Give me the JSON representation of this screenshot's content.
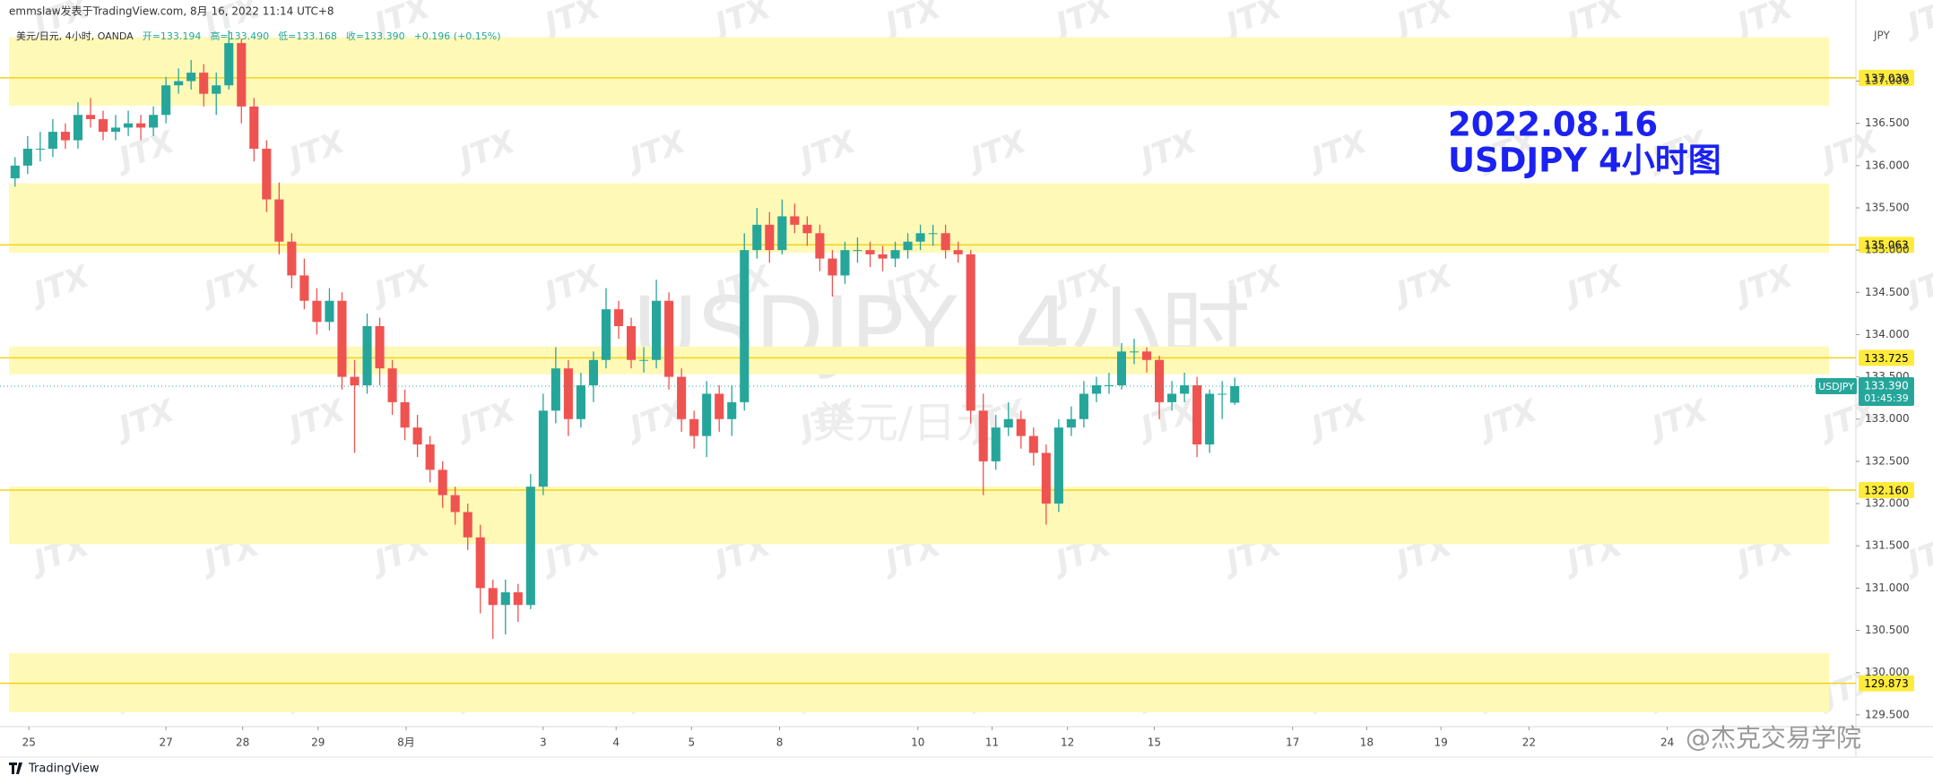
{
  "chart_data": {
    "type": "candlestick",
    "header": "emmslaw发表于TradingView.com, 8月 16, 2022 11:14 UTC+8",
    "legend": [
      "美元/日元, 4小时, OANDA",
      "开=133.194",
      "高=133.490",
      "低=133.168",
      "收=133.390",
      "+0.196 (+0.15%)"
    ],
    "annotation": [
      "2022.08.16",
      "USDJPY 4小时图"
    ],
    "watermark_title": "USDJPY, 4小时",
    "watermark_subtitle": "美元/日元",
    "watermark": "JTX",
    "footer": "TradingView",
    "author_mark": "@杰克交易学院",
    "y_unit": "JPY",
    "symbol": "USDJPY",
    "countdown": "01:45:39",
    "up_color": "#26a69a",
    "down_color": "#ef5350",
    "zone_color": "#fff9b8",
    "level_color": "#f2d31b",
    "ylim": [
      129.36,
      137.96
    ],
    "xlim": [
      -1.2,
      146.4
    ],
    "yticks": [
      {
        "value": 129.5,
        "label": "129.500"
      },
      {
        "value": 130,
        "label": "130.000"
      },
      {
        "value": 130.5,
        "label": "130.500"
      },
      {
        "value": 131,
        "label": "131.000"
      },
      {
        "value": 131.5,
        "label": "131.500"
      },
      {
        "value": 132,
        "label": "132.000"
      },
      {
        "value": 132.5,
        "label": "132.500"
      },
      {
        "value": 133,
        "label": "133.000"
      },
      {
        "value": 133.5,
        "label": "133.500"
      },
      {
        "value": 134,
        "label": "134.000"
      },
      {
        "value": 134.5,
        "label": "134.500"
      },
      {
        "value": 135,
        "label": "135.000"
      },
      {
        "value": 135.5,
        "label": "135.500"
      },
      {
        "value": 136,
        "label": "136.000"
      },
      {
        "value": 136.5,
        "label": "136.500"
      },
      {
        "value": 137,
        "label": "137.000"
      }
    ],
    "xticks": [
      {
        "value": 1.1,
        "label": "25"
      },
      {
        "value": 12,
        "label": "27"
      },
      {
        "value": 18.1,
        "label": "28"
      },
      {
        "value": 24.1,
        "label": "29"
      },
      {
        "value": 31.1,
        "label": "8月"
      },
      {
        "value": 42,
        "label": "3"
      },
      {
        "value": 47.8,
        "label": "4"
      },
      {
        "value": 53.8,
        "label": "5"
      },
      {
        "value": 60.8,
        "label": "8"
      },
      {
        "value": 71.8,
        "label": "10"
      },
      {
        "value": 77.7,
        "label": "11"
      },
      {
        "value": 83.7,
        "label": "12"
      },
      {
        "value": 90.6,
        "label": "15"
      },
      {
        "value": 101.6,
        "label": "17"
      },
      {
        "value": 107.5,
        "label": "18"
      },
      {
        "value": 113.4,
        "label": "19"
      },
      {
        "value": 120.4,
        "label": "22"
      },
      {
        "value": 131.4,
        "label": "24"
      }
    ],
    "zones": [
      [
        136.71,
        137.52
      ],
      [
        134.97,
        135.79
      ],
      [
        133.53,
        133.86
      ],
      [
        131.52,
        132.2
      ],
      [
        129.53,
        130.23
      ]
    ],
    "levels": [
      {
        "value": 137.039,
        "label": "137.039"
      },
      {
        "value": 135.063,
        "label": "135.063"
      },
      {
        "value": 133.725,
        "label": "133.725"
      },
      {
        "value": 132.16,
        "label": "132.160"
      },
      {
        "value": 129.873,
        "label": "129.873"
      }
    ],
    "last_price": {
      "value": 133.39,
      "label": "133.390"
    },
    "ohlc": [
      [
        135.85,
        136.1,
        135.75,
        136.0
      ],
      [
        136.0,
        136.35,
        135.9,
        136.2
      ],
      [
        136.2,
        136.4,
        136.05,
        136.2
      ],
      [
        136.2,
        136.55,
        136.1,
        136.4
      ],
      [
        136.4,
        136.5,
        136.2,
        136.3
      ],
      [
        136.3,
        136.75,
        136.2,
        136.6
      ],
      [
        136.6,
        136.8,
        136.45,
        136.55
      ],
      [
        136.55,
        136.65,
        136.3,
        136.4
      ],
      [
        136.4,
        136.6,
        136.3,
        136.45
      ],
      [
        136.45,
        136.65,
        136.35,
        136.5
      ],
      [
        136.5,
        136.6,
        136.3,
        136.45
      ],
      [
        136.45,
        136.7,
        136.35,
        136.6
      ],
      [
        136.6,
        137.05,
        136.5,
        136.95
      ],
      [
        136.95,
        137.15,
        136.85,
        137.0
      ],
      [
        137.0,
        137.25,
        136.9,
        137.1
      ],
      [
        137.1,
        137.2,
        136.7,
        136.85
      ],
      [
        136.85,
        137.1,
        136.6,
        136.95
      ],
      [
        136.95,
        137.6,
        136.9,
        137.45
      ],
      [
        137.45,
        137.5,
        136.5,
        136.7
      ],
      [
        136.7,
        136.8,
        136.05,
        136.2
      ],
      [
        136.2,
        136.3,
        135.45,
        135.6
      ],
      [
        135.6,
        135.8,
        134.95,
        135.1
      ],
      [
        135.1,
        135.2,
        134.55,
        134.7
      ],
      [
        134.7,
        134.9,
        134.3,
        134.4
      ],
      [
        134.4,
        134.55,
        134.0,
        134.15
      ],
      [
        134.15,
        134.55,
        134.05,
        134.4
      ],
      [
        134.4,
        134.5,
        133.35,
        133.5
      ],
      [
        133.5,
        133.7,
        132.6,
        133.4
      ],
      [
        133.4,
        134.25,
        133.3,
        134.1
      ],
      [
        134.1,
        134.2,
        133.4,
        133.6
      ],
      [
        133.6,
        133.7,
        133.05,
        133.2
      ],
      [
        133.2,
        133.35,
        132.75,
        132.9
      ],
      [
        132.9,
        133.05,
        132.55,
        132.7
      ],
      [
        132.7,
        132.8,
        132.25,
        132.4
      ],
      [
        132.4,
        132.5,
        131.95,
        132.1
      ],
      [
        132.1,
        132.2,
        131.75,
        131.9
      ],
      [
        131.9,
        132.0,
        131.45,
        131.6
      ],
      [
        131.6,
        131.75,
        130.7,
        131.0
      ],
      [
        131.0,
        131.1,
        130.4,
        130.8
      ],
      [
        130.8,
        131.1,
        130.45,
        130.95
      ],
      [
        130.95,
        131.05,
        130.6,
        130.8
      ],
      [
        130.8,
        132.35,
        130.75,
        132.2
      ],
      [
        132.2,
        133.3,
        132.1,
        133.1
      ],
      [
        133.1,
        133.85,
        132.95,
        133.6
      ],
      [
        133.6,
        133.7,
        132.8,
        133.0
      ],
      [
        133.0,
        133.55,
        132.9,
        133.4
      ],
      [
        133.4,
        133.8,
        133.2,
        133.7
      ],
      [
        133.7,
        134.55,
        133.6,
        134.3
      ],
      [
        134.3,
        134.4,
        133.95,
        134.1
      ],
      [
        134.1,
        134.2,
        133.6,
        133.7
      ],
      [
        133.7,
        133.85,
        133.55,
        133.7
      ],
      [
        133.7,
        134.65,
        133.6,
        134.4
      ],
      [
        134.4,
        134.5,
        133.35,
        133.5
      ],
      [
        133.5,
        133.6,
        132.85,
        133.0
      ],
      [
        133.0,
        133.1,
        132.65,
        132.8
      ],
      [
        132.8,
        133.45,
        132.55,
        133.3
      ],
      [
        133.3,
        133.4,
        132.85,
        133.0
      ],
      [
        133.0,
        133.4,
        132.8,
        133.2
      ],
      [
        133.2,
        135.2,
        133.1,
        135.0
      ],
      [
        135.0,
        135.5,
        134.9,
        135.3
      ],
      [
        135.3,
        135.45,
        134.85,
        135.0
      ],
      [
        135.0,
        135.6,
        134.95,
        135.4
      ],
      [
        135.4,
        135.55,
        135.2,
        135.3
      ],
      [
        135.3,
        135.4,
        135.05,
        135.2
      ],
      [
        135.2,
        135.3,
        134.75,
        134.9
      ],
      [
        134.9,
        135.0,
        134.45,
        134.7
      ],
      [
        134.7,
        135.1,
        134.6,
        135.0
      ],
      [
        135.0,
        135.15,
        134.85,
        135.0
      ],
      [
        135.0,
        135.1,
        134.8,
        134.95
      ],
      [
        134.95,
        135.05,
        134.75,
        134.9
      ],
      [
        134.9,
        135.1,
        134.8,
        135.0
      ],
      [
        135.0,
        135.2,
        134.9,
        135.1
      ],
      [
        135.1,
        135.3,
        135.0,
        135.2
      ],
      [
        135.2,
        135.3,
        135.05,
        135.2
      ],
      [
        135.2,
        135.3,
        134.9,
        135.0
      ],
      [
        135.0,
        135.1,
        134.85,
        134.95
      ],
      [
        134.95,
        135.0,
        132.95,
        133.1
      ],
      [
        133.1,
        133.3,
        132.1,
        132.5
      ],
      [
        132.5,
        133.05,
        132.4,
        132.9
      ],
      [
        132.9,
        133.2,
        132.8,
        133.0
      ],
      [
        133.0,
        133.1,
        132.65,
        132.8
      ],
      [
        132.8,
        132.9,
        132.45,
        132.6
      ],
      [
        132.6,
        132.7,
        131.75,
        132.0
      ],
      [
        132.0,
        133.0,
        131.9,
        132.9
      ],
      [
        132.9,
        133.15,
        132.8,
        133.0
      ],
      [
        133.0,
        133.45,
        132.9,
        133.3
      ],
      [
        133.3,
        133.5,
        133.2,
        133.4
      ],
      [
        133.4,
        133.55,
        133.3,
        133.4
      ],
      [
        133.4,
        133.9,
        133.35,
        133.8
      ],
      [
        133.8,
        133.95,
        133.65,
        133.8
      ],
      [
        133.8,
        133.85,
        133.55,
        133.7
      ],
      [
        133.7,
        133.75,
        133.0,
        133.2
      ],
      [
        133.2,
        133.45,
        133.1,
        133.3
      ],
      [
        133.3,
        133.55,
        133.2,
        133.4
      ],
      [
        133.4,
        133.5,
        132.55,
        132.7
      ],
      [
        132.7,
        133.35,
        132.6,
        133.3
      ],
      [
        133.3,
        133.45,
        133.0,
        133.3
      ],
      [
        133.194,
        133.49,
        133.168,
        133.39
      ]
    ]
  }
}
